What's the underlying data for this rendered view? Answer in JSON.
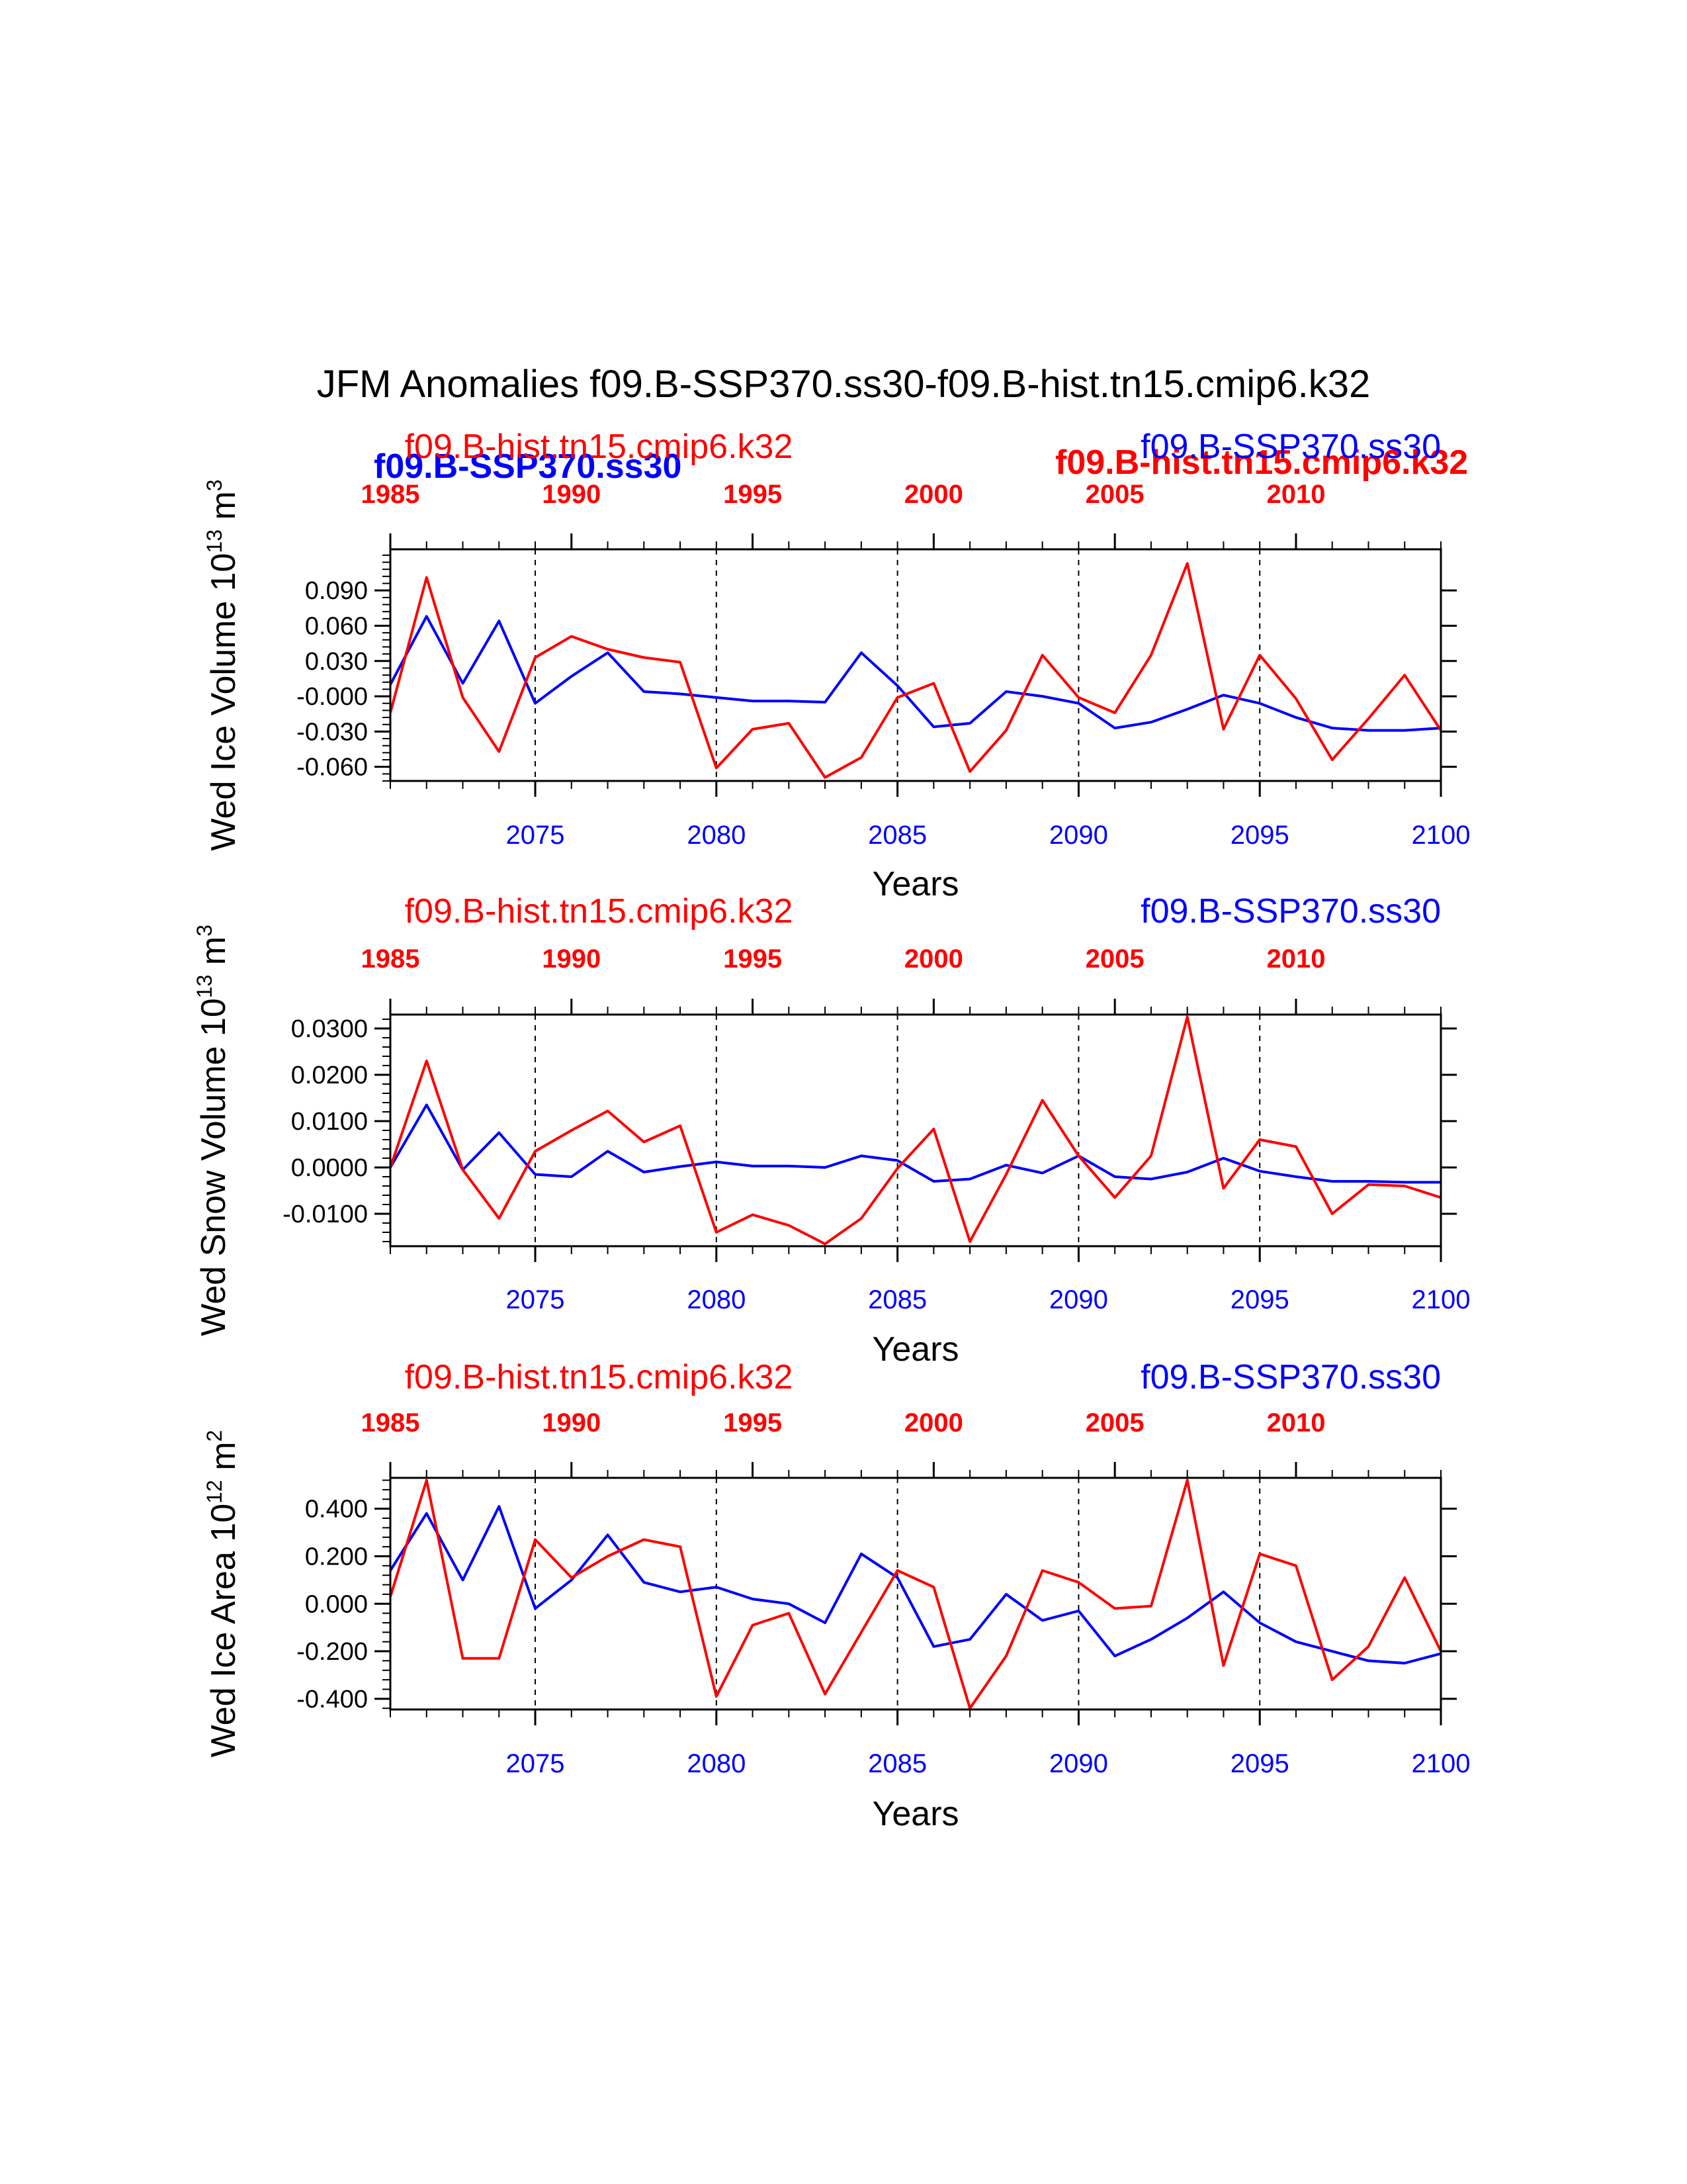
{
  "title": "JFM Anomalies f09.B-SSP370.ss30-f09.B-hist.tn15.cmip6.k32",
  "colors": {
    "model": "#0000ff",
    "reference": "#ff0000",
    "axis": "#000000"
  },
  "overlay_labels": {
    "model_bold": "f09.B-SSP370.ss30",
    "reference_bold": "f09.B-hist.tn15.cmip6.k32"
  },
  "chart_data": [
    {
      "type": "line",
      "ylabel": "Wed Ice Volume 10",
      "ylabel_exp": "13",
      "ylabel_unit": " m",
      "ylabel_unit_exp": "3",
      "xlabel": "Years",
      "legend_reference": "f09.B-hist.tn15.cmip6.k32",
      "legend_model": "f09.B-SSP370.ss30",
      "xlim": [
        2071,
        2100
      ],
      "ylim": [
        -0.072,
        0.125
      ],
      "yticks": [
        -0.06,
        -0.03,
        0.0,
        0.03,
        0.06,
        0.09
      ],
      "ytick_labels": [
        "-0.060",
        "-0.030",
        "-0.000",
        "0.030",
        "0.060",
        "0.090"
      ],
      "xticks": [
        2075,
        2080,
        2085,
        2090,
        2095,
        2100
      ],
      "xtick_labels": [
        "2075",
        "2080",
        "2085",
        "2090",
        "2095",
        "2100"
      ],
      "top_xlim": [
        1985,
        2014
      ],
      "top_xticks": [
        1985,
        1990,
        1995,
        2000,
        2005,
        2010
      ],
      "top_xtick_labels": [
        "1985",
        "1990",
        "1995",
        "2000",
        "2005",
        "2010"
      ],
      "gridlines_x": [
        2075,
        2080,
        2085,
        2090,
        2095
      ],
      "series": [
        {
          "name": "f09.B-SSP370.ss30",
          "color": "#0000ff",
          "x": [
            2071,
            2072,
            2073,
            2074,
            2075,
            2076,
            2077,
            2078,
            2079,
            2080,
            2081,
            2082,
            2083,
            2084,
            2085,
            2086,
            2087,
            2088,
            2089,
            2090,
            2091,
            2092,
            2093,
            2094,
            2095,
            2096,
            2097,
            2098,
            2099,
            2100
          ],
          "values": [
            0.01,
            0.068,
            0.011,
            0.064,
            -0.006,
            0.017,
            0.037,
            0.004,
            0.002,
            -0.001,
            -0.004,
            -0.004,
            -0.005,
            0.037,
            0.009,
            -0.026,
            -0.023,
            0.004,
            -0.0,
            -0.006,
            -0.027,
            -0.022,
            -0.011,
            0.001,
            -0.006,
            -0.018,
            -0.027,
            -0.029,
            -0.029,
            -0.027
          ]
        },
        {
          "name": "f09.B-hist.tn15.cmip6.k32",
          "color": "#ff0000",
          "x": [
            2071,
            2072,
            2073,
            2074,
            2075,
            2076,
            2077,
            2078,
            2079,
            2080,
            2081,
            2082,
            2083,
            2084,
            2085,
            2086,
            2087,
            2088,
            2089,
            2090,
            2091,
            2092,
            2093,
            2094,
            2095,
            2096,
            2097,
            2098,
            2099,
            2100
          ],
          "values": [
            -0.014,
            0.101,
            -0.001,
            -0.047,
            0.033,
            0.051,
            0.04,
            0.033,
            0.029,
            -0.061,
            -0.028,
            -0.023,
            -0.069,
            -0.052,
            -0.001,
            0.011,
            -0.064,
            -0.029,
            0.035,
            -0.001,
            -0.014,
            0.035,
            0.113,
            -0.028,
            0.035,
            -0.002,
            -0.054,
            -0.019,
            0.018,
            -0.029
          ]
        }
      ]
    },
    {
      "type": "line",
      "ylabel": "Wed Snow Volume 10",
      "ylabel_exp": "13",
      "ylabel_unit": " m",
      "ylabel_unit_exp": "3",
      "xlabel": "Years",
      "legend_reference": "f09.B-hist.tn15.cmip6.k32",
      "legend_model": "f09.B-SSP370.ss30",
      "xlim": [
        2071,
        2100
      ],
      "ylim": [
        -0.017,
        0.033
      ],
      "yticks": [
        -0.01,
        0.0,
        0.01,
        0.02,
        0.03
      ],
      "ytick_labels": [
        "-0.0100",
        "0.0000",
        "0.0100",
        "0.0200",
        "0.0300"
      ],
      "xticks": [
        2075,
        2080,
        2085,
        2090,
        2095,
        2100
      ],
      "xtick_labels": [
        "2075",
        "2080",
        "2085",
        "2090",
        "2095",
        "2100"
      ],
      "top_xlim": [
        1985,
        2014
      ],
      "top_xticks": [
        1985,
        1990,
        1995,
        2000,
        2005,
        2010
      ],
      "top_xtick_labels": [
        "1985",
        "1990",
        "1995",
        "2000",
        "2005",
        "2010"
      ],
      "gridlines_x": [
        2075,
        2080,
        2085,
        2090,
        2095
      ],
      "series": [
        {
          "name": "f09.B-SSP370.ss30",
          "color": "#0000ff",
          "x": [
            2071,
            2072,
            2073,
            2074,
            2075,
            2076,
            2077,
            2078,
            2079,
            2080,
            2081,
            2082,
            2083,
            2084,
            2085,
            2086,
            2087,
            2088,
            2089,
            2090,
            2091,
            2092,
            2093,
            2094,
            2095,
            2096,
            2097,
            2098,
            2099,
            2100
          ],
          "values": [
            0.0,
            0.0135,
            -0.0005,
            0.0075,
            -0.0015,
            -0.002,
            0.0035,
            -0.001,
            0.0002,
            0.0012,
            0.0003,
            0.0003,
            0.0,
            0.0025,
            0.0015,
            -0.003,
            -0.0025,
            0.0005,
            -0.0012,
            0.0025,
            -0.002,
            -0.0025,
            -0.001,
            0.002,
            -0.0008,
            -0.002,
            -0.003,
            -0.003,
            -0.0032,
            -0.0032
          ]
        },
        {
          "name": "f09.B-hist.tn15.cmip6.k32",
          "color": "#ff0000",
          "x": [
            2071,
            2072,
            2073,
            2074,
            2075,
            2076,
            2077,
            2078,
            2079,
            2080,
            2081,
            2082,
            2083,
            2084,
            2085,
            2086,
            2087,
            2088,
            2089,
            2090,
            2091,
            2092,
            2093,
            2094,
            2095,
            2096,
            2097,
            2098,
            2099,
            2100
          ],
          "values": [
            0.0,
            0.023,
            -0.0005,
            -0.011,
            0.0035,
            0.008,
            0.0122,
            0.0055,
            0.009,
            -0.014,
            -0.0102,
            -0.0125,
            -0.0165,
            -0.011,
            -0.0002,
            0.0083,
            -0.016,
            -0.0015,
            0.0145,
            0.0025,
            -0.0065,
            0.0025,
            0.0325,
            -0.0045,
            0.006,
            0.0045,
            -0.01,
            -0.0037,
            -0.004,
            -0.0065
          ]
        }
      ]
    },
    {
      "type": "line",
      "ylabel": "Wed Ice Area 10",
      "ylabel_exp": "12",
      "ylabel_unit": " m",
      "ylabel_unit_exp": "2",
      "xlabel": "Years",
      "legend_reference": "f09.B-hist.tn15.cmip6.k32",
      "legend_model": "f09.B-SSP370.ss30",
      "xlim": [
        2071,
        2100
      ],
      "ylim": [
        -0.445,
        0.53
      ],
      "yticks": [
        -0.4,
        -0.2,
        0.0,
        0.2,
        0.4
      ],
      "ytick_labels": [
        "-0.400",
        "-0.200",
        "0.000",
        "0.200",
        "0.400"
      ],
      "xticks": [
        2075,
        2080,
        2085,
        2090,
        2095,
        2100
      ],
      "xtick_labels": [
        "2075",
        "2080",
        "2085",
        "2090",
        "2095",
        "2100"
      ],
      "top_xlim": [
        1985,
        2014
      ],
      "top_xticks": [
        1985,
        1990,
        1995,
        2000,
        2005,
        2010
      ],
      "top_xtick_labels": [
        "1985",
        "1990",
        "1995",
        "2000",
        "2005",
        "2010"
      ],
      "gridlines_x": [
        2075,
        2080,
        2085,
        2090,
        2095
      ],
      "series": [
        {
          "name": "f09.B-SSP370.ss30",
          "color": "#0000ff",
          "x": [
            2071,
            2072,
            2073,
            2074,
            2075,
            2076,
            2077,
            2078,
            2079,
            2080,
            2081,
            2082,
            2083,
            2084,
            2085,
            2086,
            2087,
            2088,
            2089,
            2090,
            2091,
            2092,
            2093,
            2094,
            2095,
            2096,
            2097,
            2098,
            2099,
            2100
          ],
          "values": [
            0.14,
            0.38,
            0.1,
            0.41,
            -0.02,
            0.1,
            0.29,
            0.09,
            0.05,
            0.07,
            0.02,
            0.0,
            -0.08,
            0.21,
            0.11,
            -0.18,
            -0.15,
            0.04,
            -0.07,
            -0.03,
            -0.22,
            -0.15,
            -0.06,
            0.05,
            -0.08,
            -0.16,
            -0.2,
            -0.24,
            -0.25,
            -0.21
          ]
        },
        {
          "name": "f09.B-hist.tn15.cmip6.k32",
          "color": "#ff0000",
          "x": [
            2071,
            2072,
            2073,
            2074,
            2075,
            2076,
            2077,
            2078,
            2079,
            2080,
            2081,
            2082,
            2083,
            2084,
            2085,
            2086,
            2087,
            2088,
            2089,
            2090,
            2091,
            2092,
            2093,
            2094,
            2095,
            2096,
            2097,
            2098,
            2099,
            2100
          ],
          "values": [
            0.03,
            0.52,
            -0.23,
            -0.23,
            0.27,
            0.11,
            0.2,
            0.27,
            0.24,
            -0.39,
            -0.09,
            -0.04,
            -0.38,
            -0.12,
            0.14,
            0.07,
            -0.44,
            -0.22,
            0.14,
            0.09,
            -0.02,
            -0.01,
            0.52,
            -0.26,
            0.21,
            0.16,
            -0.32,
            -0.18,
            0.11,
            -0.2
          ]
        }
      ]
    }
  ]
}
